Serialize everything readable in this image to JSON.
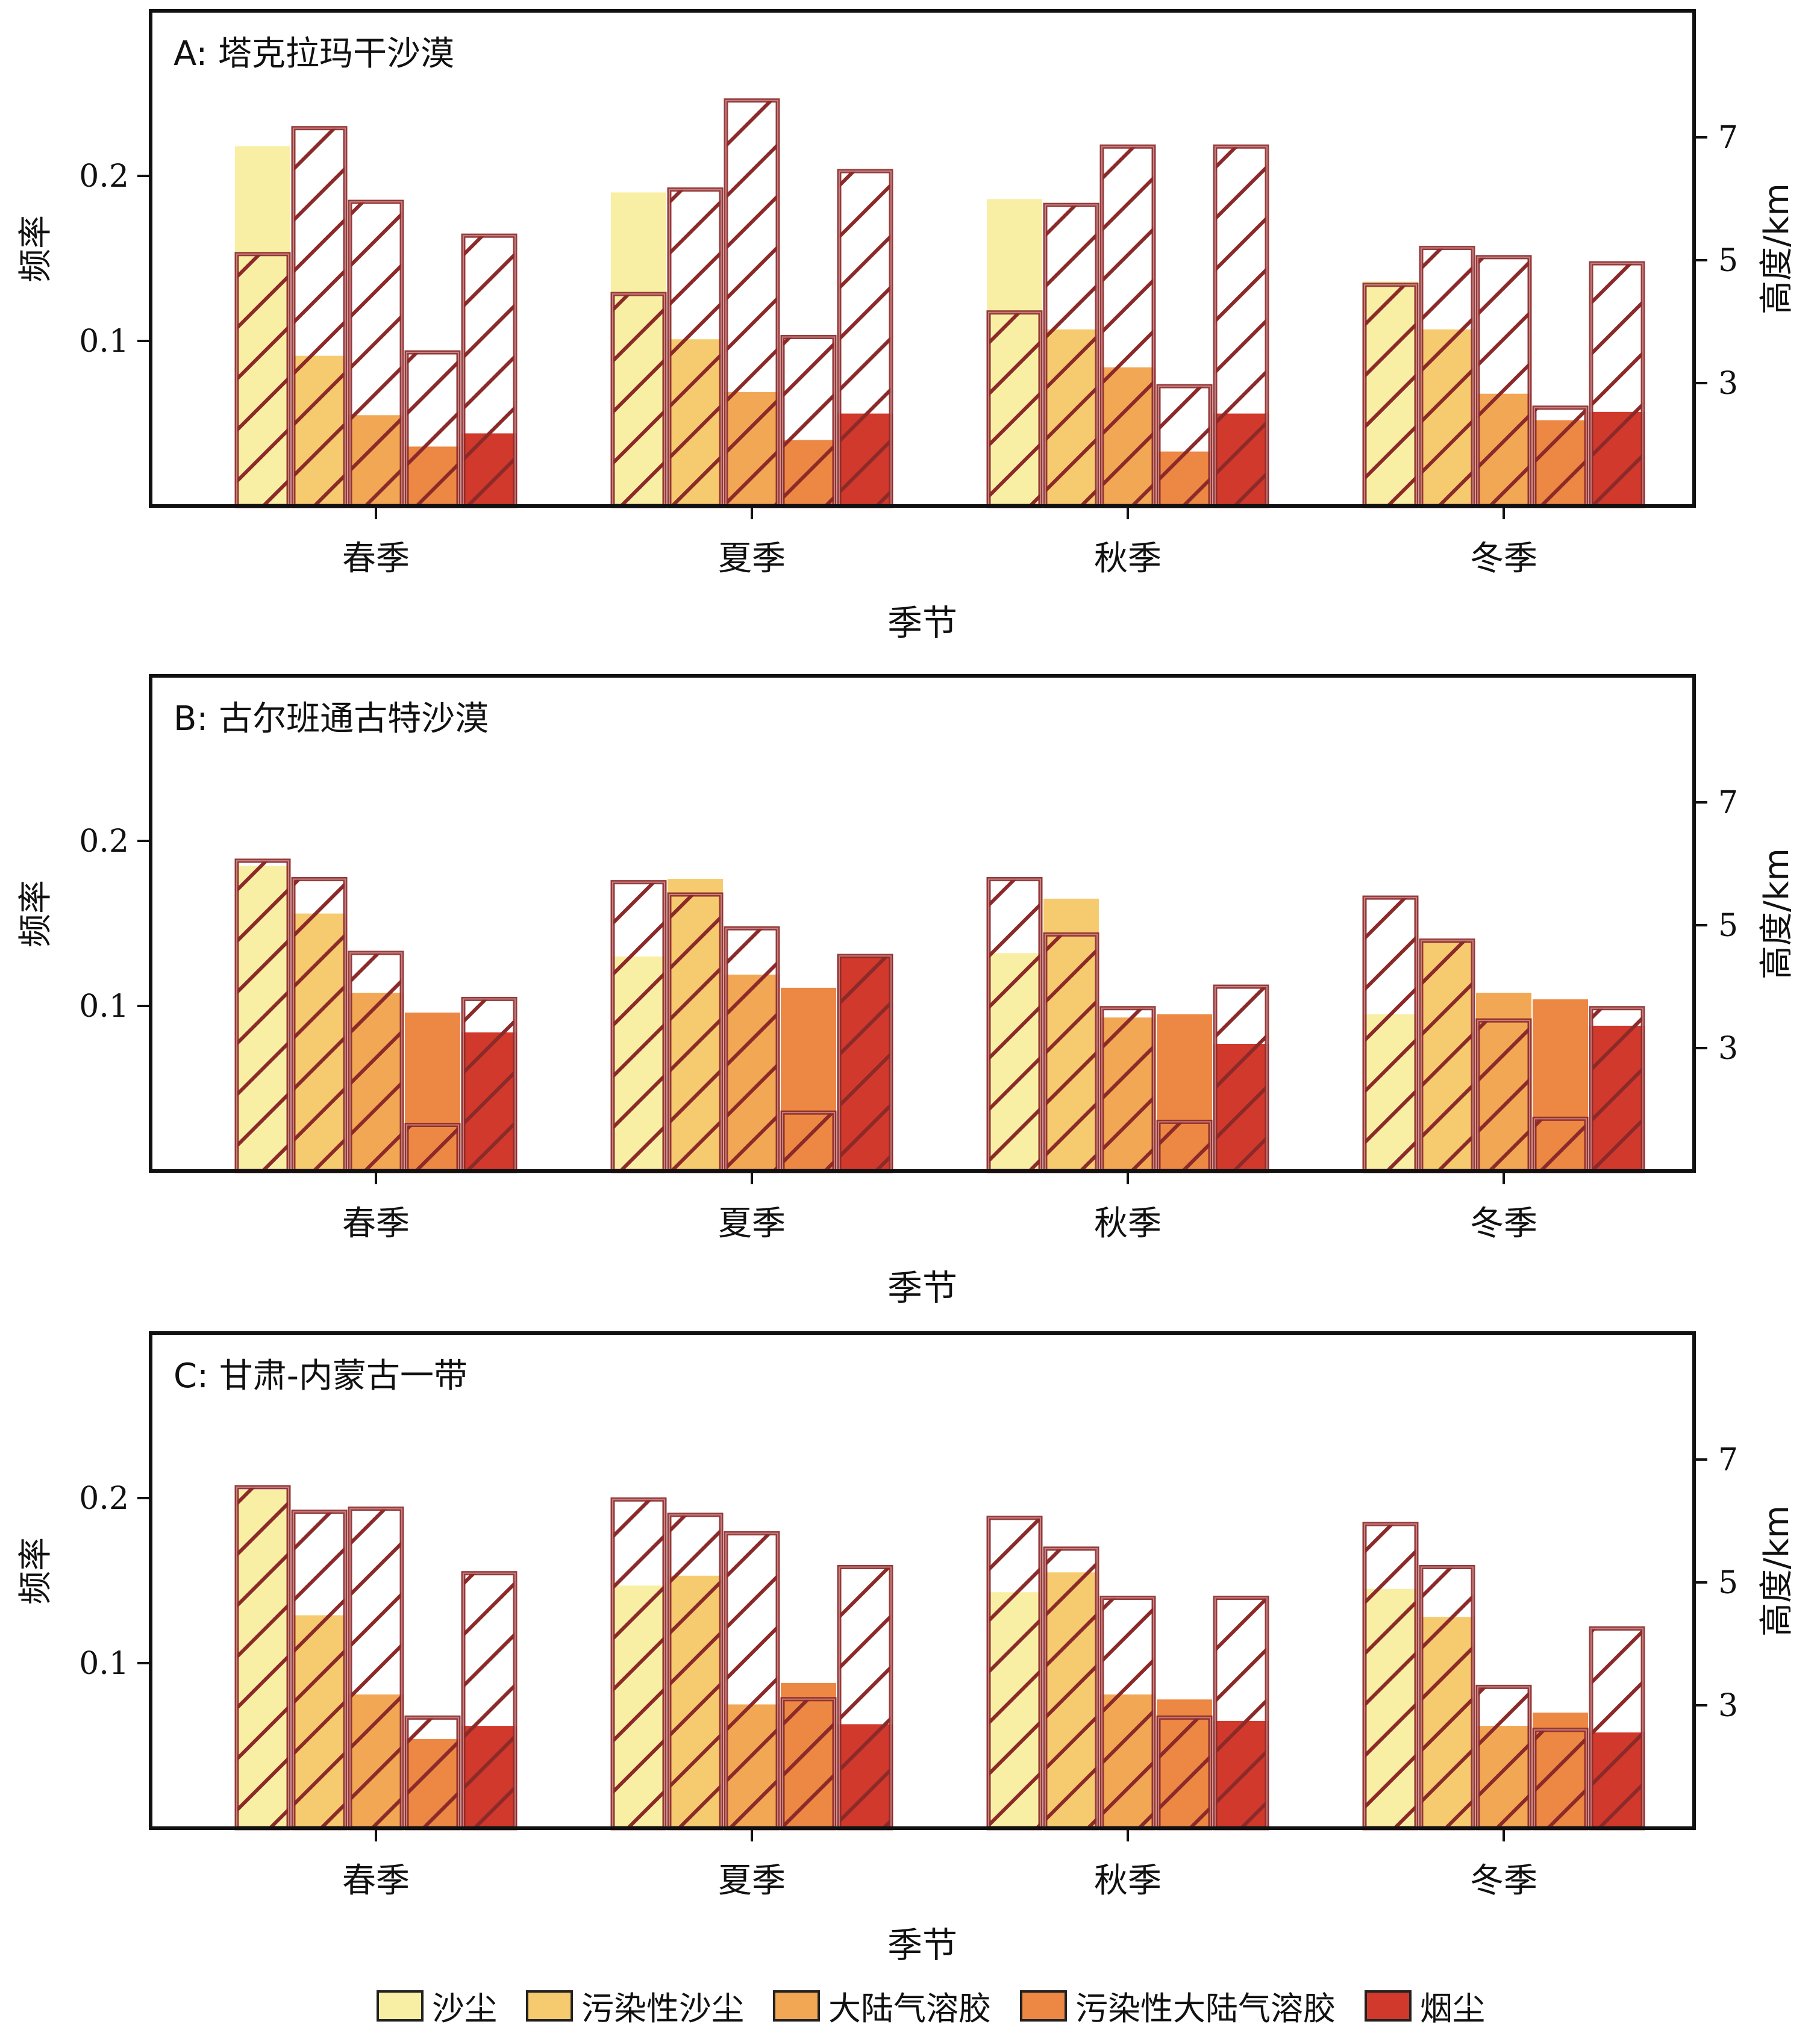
{
  "legend": [
    {
      "label": "沙尘",
      "color": "#f9efa4"
    },
    {
      "label": "污染性沙尘",
      "color": "#f6cb6f"
    },
    {
      "label": "大陆气溶胶",
      "color": "#f2a755"
    },
    {
      "label": "污染性大陆气溶胶",
      "color": "#ec8744"
    },
    {
      "label": "烟尘",
      "color": "#d0392b"
    }
  ],
  "hatch_color": "#8c2a2a",
  "chart_data": [
    {
      "type": "bar",
      "title": "A: 塔克拉玛干沙漠",
      "xlabel": "季节",
      "ylabel_left": "频率",
      "ylabel_right": "高度/km",
      "categories": [
        "春季",
        "夏季",
        "秋季",
        "冬季"
      ],
      "yticks_left": [
        "0.1",
        "0.2"
      ],
      "yticks_right": [
        "3",
        "5",
        "7"
      ],
      "ylim_left": [
        0,
        0.3
      ],
      "ylim_right": [
        1,
        9
      ],
      "series": [
        {
          "name": "沙尘",
          "frequency": [
            0.218,
            0.19,
            0.186,
            0.136
          ],
          "height_km": [
            5.1,
            4.45,
            4.15,
            4.6
          ]
        },
        {
          "name": "污染性沙尘",
          "frequency": [
            0.091,
            0.101,
            0.107,
            0.107
          ],
          "height_km": [
            7.15,
            6.15,
            5.9,
            5.2
          ]
        },
        {
          "name": "大陆气溶胶",
          "frequency": [
            0.055,
            0.069,
            0.084,
            0.068
          ],
          "height_km": [
            5.95,
            7.6,
            6.85,
            5.05
          ]
        },
        {
          "name": "污染性大陆气溶胶",
          "frequency": [
            0.036,
            0.04,
            0.033,
            0.052
          ],
          "height_km": [
            3.5,
            3.75,
            2.95,
            2.6
          ]
        },
        {
          "name": "烟尘",
          "frequency": [
            0.044,
            0.056,
            0.056,
            0.057
          ],
          "height_km": [
            5.4,
            6.45,
            6.85,
            4.95
          ]
        }
      ]
    },
    {
      "type": "bar",
      "title": "B: 古尔班通古特沙漠",
      "xlabel": "季节",
      "ylabel_left": "频率",
      "ylabel_right": "高度/km",
      "categories": [
        "春季",
        "夏季",
        "秋季",
        "冬季"
      ],
      "yticks_left": [
        "0.1",
        "0.2"
      ],
      "yticks_right": [
        "3",
        "5",
        "7"
      ],
      "ylim_left": [
        0,
        0.3
      ],
      "ylim_right": [
        1,
        9
      ],
      "series": [
        {
          "name": "沙尘",
          "frequency": [
            0.185,
            0.13,
            0.132,
            0.095
          ],
          "height_km": [
            6.05,
            5.7,
            5.75,
            5.45
          ]
        },
        {
          "name": "污染性沙尘",
          "frequency": [
            0.156,
            0.177,
            0.165,
            0.14
          ],
          "height_km": [
            5.75,
            5.5,
            4.85,
            4.75
          ]
        },
        {
          "name": "大陆气溶胶",
          "frequency": [
            0.108,
            0.119,
            0.093,
            0.108
          ],
          "height_km": [
            4.55,
            4.95,
            3.65,
            3.45
          ]
        },
        {
          "name": "污染性大陆气溶胶",
          "frequency": [
            0.096,
            0.111,
            0.095,
            0.104
          ],
          "height_km": [
            1.75,
            1.95,
            1.8,
            1.85
          ]
        },
        {
          "name": "烟尘",
          "frequency": [
            0.084,
            0.131,
            0.077,
            0.088
          ],
          "height_km": [
            3.8,
            4.5,
            4.0,
            3.65
          ]
        }
      ]
    },
    {
      "type": "bar",
      "title": "C: 甘肃-内蒙古一带",
      "xlabel": "季节",
      "ylabel_left": "频率",
      "ylabel_right": "高度/km",
      "categories": [
        "春季",
        "夏季",
        "秋季",
        "冬季"
      ],
      "yticks_left": [
        "0.1",
        "0.2"
      ],
      "yticks_right": [
        "3",
        "5",
        "7"
      ],
      "ylim_left": [
        0,
        0.3
      ],
      "ylim_right": [
        1,
        9
      ],
      "series": [
        {
          "name": "沙尘",
          "frequency": [
            0.205,
            0.147,
            0.143,
            0.145
          ],
          "height_km": [
            6.55,
            6.35,
            6.05,
            5.95
          ]
        },
        {
          "name": "污染性沙尘",
          "frequency": [
            0.129,
            0.153,
            0.155,
            0.128
          ],
          "height_km": [
            6.15,
            6.1,
            5.55,
            5.25
          ]
        },
        {
          "name": "大陆气溶胶",
          "frequency": [
            0.081,
            0.075,
            0.081,
            0.062
          ],
          "height_km": [
            6.2,
            5.8,
            4.75,
            3.3
          ]
        },
        {
          "name": "污染性大陆气溶胶",
          "frequency": [
            0.054,
            0.088,
            0.078,
            0.07
          ],
          "height_km": [
            2.8,
            3.1,
            2.8,
            2.6
          ]
        },
        {
          "name": "烟尘",
          "frequency": [
            0.062,
            0.063,
            0.065,
            0.058
          ],
          "height_km": [
            5.15,
            5.25,
            4.75,
            4.25
          ]
        }
      ]
    }
  ]
}
